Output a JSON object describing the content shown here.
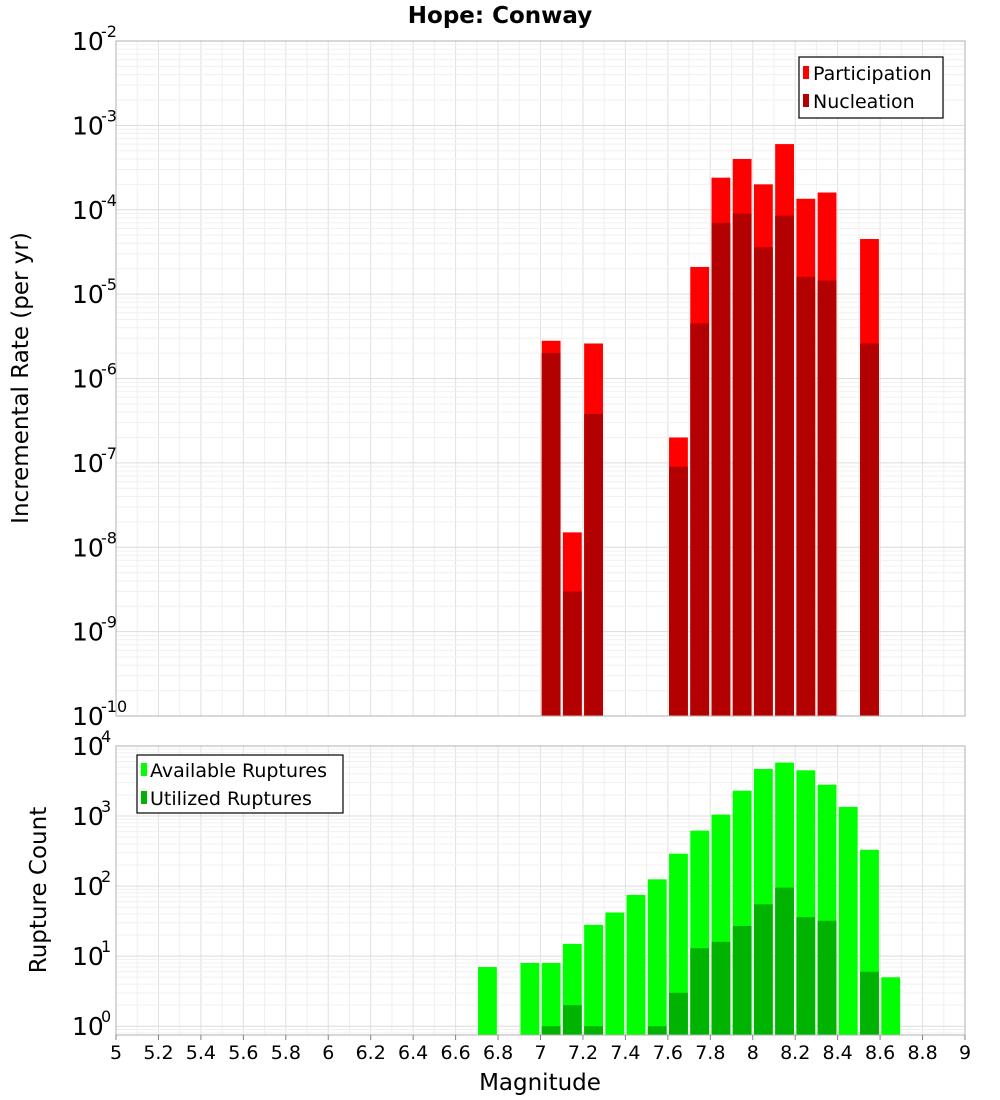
{
  "chart_data": [
    {
      "type": "bar",
      "title": "Hope: Conway",
      "ylabel": "Incremental Rate (per yr)",
      "xlim": [
        5,
        9
      ],
      "ylim": [
        1e-10,
        0.01
      ],
      "yscale": "log",
      "grid": true,
      "legend_placement": "top-right",
      "y_tick_exponents": [
        -10,
        -9,
        -8,
        -7,
        -6,
        -5,
        -4,
        -3,
        -2
      ],
      "bin_width": 0.1,
      "series": [
        {
          "name": "Participation",
          "color": "#ff0000",
          "x": [
            7.05,
            7.15,
            7.25,
            7.65,
            7.75,
            7.85,
            7.95,
            8.05,
            8.15,
            8.25,
            8.35,
            8.55
          ],
          "values": [
            2.8e-06,
            1.5e-08,
            2.6e-06,
            2e-07,
            2.1e-05,
            0.00024,
            0.0004,
            0.0002,
            0.0006,
            0.000135,
            0.00016,
            4.5e-05
          ]
        },
        {
          "name": "Nucleation",
          "color": "#b30000",
          "x": [
            7.05,
            7.15,
            7.25,
            7.65,
            7.75,
            7.85,
            7.95,
            8.05,
            8.15,
            8.25,
            8.35,
            8.55
          ],
          "values": [
            2e-06,
            3e-09,
            3.8e-07,
            9e-08,
            4.5e-06,
            7e-05,
            9e-05,
            3.6e-05,
            8.5e-05,
            1.6e-05,
            1.45e-05,
            2.6e-06
          ]
        }
      ]
    },
    {
      "type": "bar",
      "xlabel": "Magnitude",
      "ylabel": "Rupture Count",
      "xlim": [
        5,
        9
      ],
      "ylim": [
        0.75,
        10000
      ],
      "yscale": "log",
      "grid": true,
      "legend_placement": "top-left",
      "y_tick_exponents": [
        0,
        1,
        2,
        3,
        4
      ],
      "x_ticks": [
        "5",
        "5.2",
        "5.4",
        "5.6",
        "5.8",
        "6",
        "6.2",
        "6.4",
        "6.6",
        "6.8",
        "7",
        "7.2",
        "7.4",
        "7.6",
        "7.8",
        "8",
        "8.2",
        "8.4",
        "8.6",
        "8.8",
        "9"
      ],
      "bin_width": 0.1,
      "series": [
        {
          "name": "Available Ruptures",
          "color": "#00ff00",
          "x": [
            6.75,
            6.95,
            7.05,
            7.15,
            7.25,
            7.35,
            7.45,
            7.55,
            7.65,
            7.75,
            7.85,
            7.95,
            8.05,
            8.15,
            8.25,
            8.35,
            8.45,
            8.55,
            8.65
          ],
          "values": [
            7,
            8,
            8,
            15,
            28,
            42,
            75,
            125,
            290,
            620,
            1050,
            2300,
            4700,
            5800,
            4500,
            2800,
            1350,
            330,
            5
          ]
        },
        {
          "name": "Utilized Ruptures",
          "color": "#00b300",
          "x": [
            7.05,
            7.15,
            7.25,
            7.55,
            7.65,
            7.75,
            7.85,
            7.95,
            8.05,
            8.15,
            8.25,
            8.35,
            8.55
          ],
          "values": [
            1,
            2,
            1,
            1,
            3,
            13,
            16,
            27,
            55,
            95,
            36,
            32,
            6
          ]
        }
      ]
    }
  ]
}
